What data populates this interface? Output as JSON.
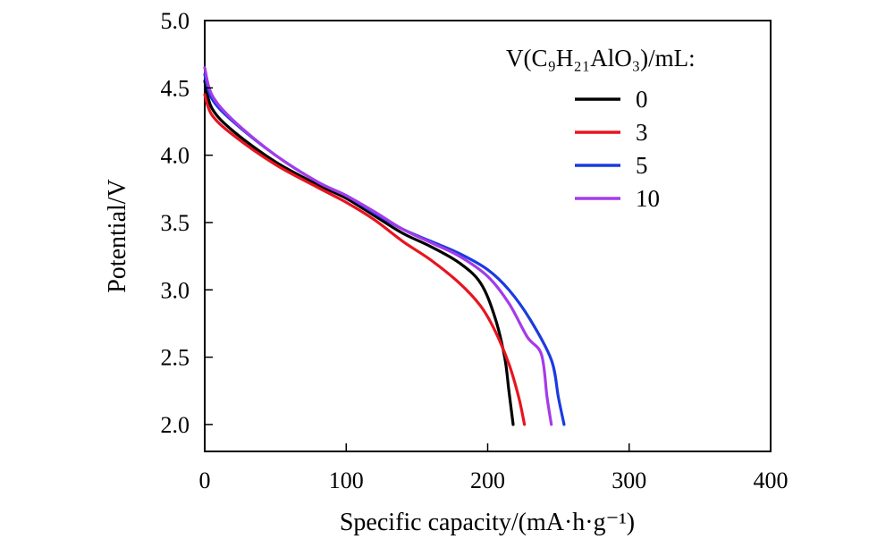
{
  "chart_data": {
    "type": "line",
    "xlabel": "Specific capacity/(mA·h·g⁻¹)",
    "ylabel": "Potential/V",
    "xlim": [
      0,
      400
    ],
    "ylim": [
      1.8,
      5.0
    ],
    "x_ticks": [
      0,
      100,
      200,
      300,
      400
    ],
    "x_tick_labels": [
      "0",
      "100",
      "200",
      "300",
      "400"
    ],
    "y_ticks": [
      2.0,
      2.5,
      3.0,
      3.5,
      4.0,
      4.5,
      5.0
    ],
    "y_tick_labels": [
      "2.0",
      "2.5",
      "3.0",
      "3.5",
      "4.0",
      "4.5",
      "5.0"
    ],
    "grid": false,
    "legend": {
      "title": "V(C₉H₂₁AlO₃)/mL:",
      "position": "top-right"
    },
    "series": [
      {
        "name": "0",
        "color": "#000000",
        "x": [
          0,
          5,
          20,
          50,
          80,
          100,
          120,
          140,
          160,
          180,
          195,
          205,
          212,
          215,
          218
        ],
        "y": [
          4.55,
          4.35,
          4.18,
          3.95,
          3.78,
          3.68,
          3.55,
          3.42,
          3.32,
          3.2,
          3.05,
          2.8,
          2.5,
          2.25,
          2.0
        ]
      },
      {
        "name": "3",
        "color": "#e8141f",
        "x": [
          0,
          5,
          20,
          50,
          80,
          100,
          120,
          140,
          160,
          180,
          195,
          205,
          215,
          222,
          226
        ],
        "y": [
          4.45,
          4.3,
          4.15,
          3.93,
          3.76,
          3.65,
          3.52,
          3.36,
          3.22,
          3.05,
          2.88,
          2.7,
          2.45,
          2.2,
          2.0
        ]
      },
      {
        "name": "5",
        "color": "#1a3be0",
        "x": [
          0,
          5,
          20,
          50,
          80,
          100,
          120,
          140,
          160,
          180,
          200,
          215,
          230,
          245,
          250,
          254
        ],
        "y": [
          4.6,
          4.42,
          4.25,
          4.0,
          3.8,
          3.7,
          3.57,
          3.45,
          3.36,
          3.27,
          3.15,
          3.0,
          2.78,
          2.48,
          2.2,
          2.0
        ]
      },
      {
        "name": "10",
        "color": "#a43bea",
        "x": [
          0,
          5,
          20,
          50,
          80,
          100,
          120,
          140,
          160,
          180,
          200,
          215,
          228,
          238,
          242,
          245
        ],
        "y": [
          4.65,
          4.45,
          4.26,
          4.0,
          3.8,
          3.7,
          3.58,
          3.45,
          3.35,
          3.25,
          3.1,
          2.9,
          2.65,
          2.52,
          2.2,
          2.0
        ]
      }
    ]
  }
}
